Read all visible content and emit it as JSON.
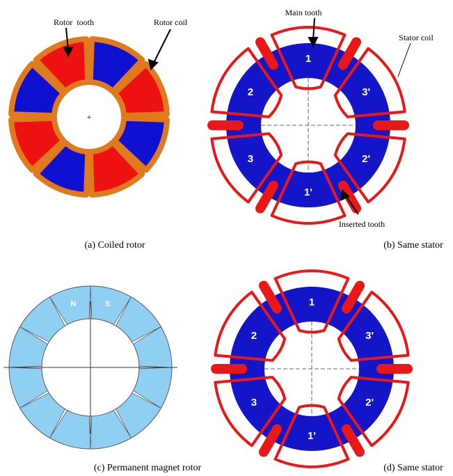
{
  "panels": [
    {
      "caption": "(a) Coiled rotor",
      "labels": [
        "Rotor  tooth",
        "Rotor coil"
      ]
    },
    {
      "caption": "(b) Same stator",
      "labels": [
        "Main tooth",
        "Stator coil",
        "Inserted tooth"
      ],
      "phases": [
        "1",
        "3'",
        "2'",
        "1'",
        "3",
        "2"
      ]
    },
    {
      "caption": "(c) Permanent magnet rotor",
      "poles": [
        "N",
        "S"
      ]
    },
    {
      "caption": "(d) Same stator",
      "phases": [
        "1",
        "3'",
        "2'",
        "1'",
        "3",
        "2"
      ]
    }
  ]
}
